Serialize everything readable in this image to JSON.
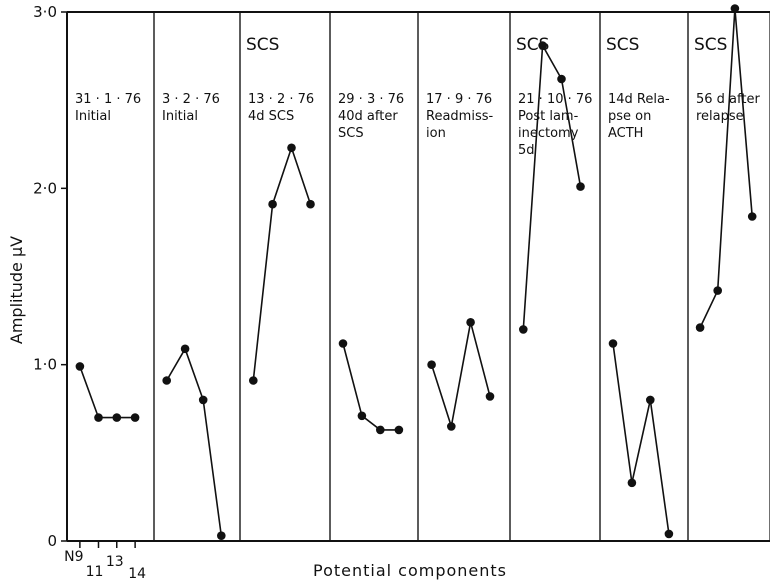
{
  "chart_data": {
    "type": "line",
    "ylabel": "Amplitude μV",
    "xlabel": "Potential components",
    "ylim": [
      0,
      3.0
    ],
    "yticks": [
      {
        "value": 0,
        "label": "0"
      },
      {
        "value": 1.0,
        "label": "1·0"
      },
      {
        "value": 2.0,
        "label": "2·0"
      },
      {
        "value": 3.0,
        "label": "3·0"
      }
    ],
    "x_categories": [
      "N9",
      "11",
      "13",
      "14"
    ],
    "grid": false,
    "panels": [
      {
        "scs_label": "",
        "annotation": [
          "31 · 1 · 76",
          "Initial"
        ],
        "values": [
          0.99,
          0.7,
          0.7,
          0.7
        ]
      },
      {
        "scs_label": "",
        "annotation": [
          "3 · 2 · 76",
          "Initial"
        ],
        "values": [
          0.91,
          1.09,
          0.8,
          0.03
        ]
      },
      {
        "scs_label": "SCS",
        "annotation": [
          "13 · 2 · 76",
          "4d SCS"
        ],
        "values": [
          0.91,
          1.91,
          2.23,
          1.91
        ]
      },
      {
        "scs_label": "",
        "annotation": [
          "29 · 3 · 76",
          "40d after",
          "SCS"
        ],
        "values": [
          1.12,
          0.71,
          0.63,
          0.63
        ]
      },
      {
        "scs_label": "",
        "annotation": [
          "17 · 9 · 76",
          "Readmiss-",
          "ion"
        ],
        "values": [
          1.0,
          0.65,
          1.24,
          0.82
        ]
      },
      {
        "scs_label": "SCS",
        "annotation": [
          "21 · 10 · 76",
          "Post lam-",
          "inectomy",
          "5d"
        ],
        "values": [
          1.2,
          2.81,
          2.62,
          2.01
        ]
      },
      {
        "scs_label": "SCS",
        "annotation": [
          "14d Rela-",
          "pse on",
          "ACTH"
        ],
        "values": [
          1.12,
          0.33,
          0.8,
          0.04
        ]
      },
      {
        "scs_label": "SCS",
        "annotation": [
          "56 d after",
          "relapse"
        ],
        "values": [
          1.21,
          1.42,
          3.02,
          1.84
        ]
      }
    ]
  }
}
